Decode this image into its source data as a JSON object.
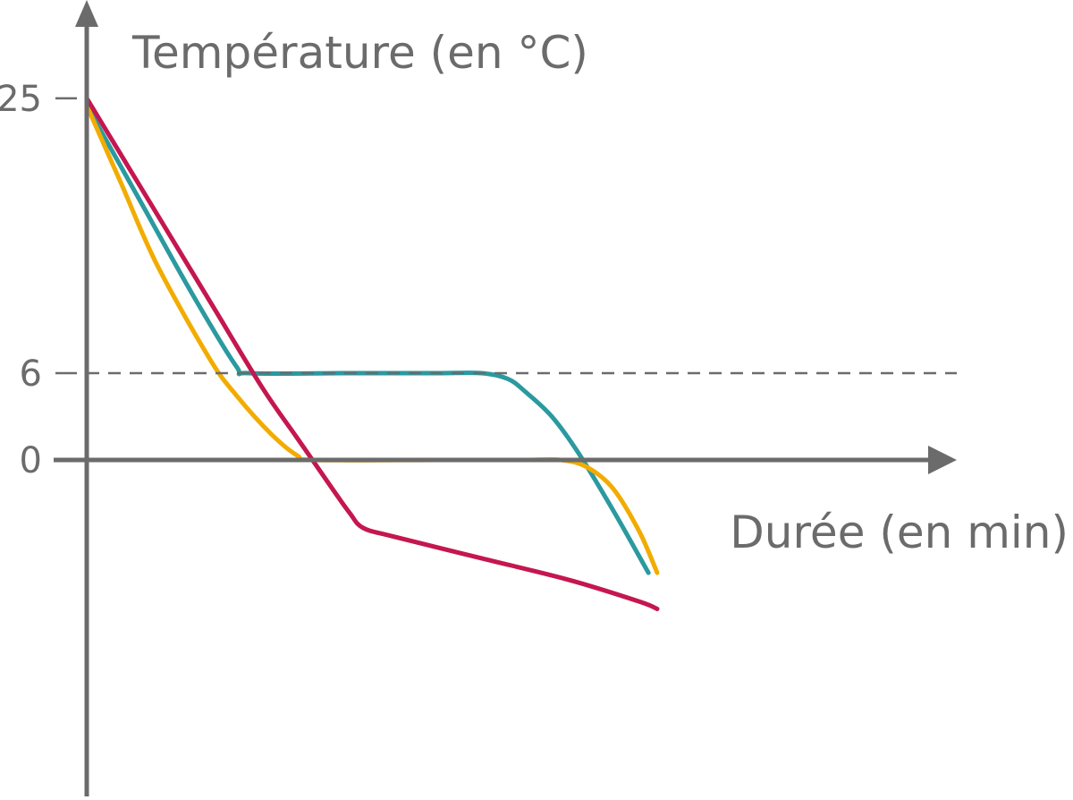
{
  "chart_data": {
    "type": "line",
    "ylabel": "Température (en °C)",
    "xlabel": "Durée (en min)",
    "y_ticks": [
      {
        "value": 25,
        "label": "25"
      },
      {
        "value": 6,
        "label": "6"
      },
      {
        "value": 0,
        "label": "0"
      }
    ],
    "ylim": [
      -24,
      28
    ],
    "reference_lines": [
      {
        "axis": "y",
        "value": 6,
        "style": "dashed"
      }
    ],
    "grid": false,
    "x_units": "relative (0 to 100, no ticks shown)",
    "xlim": [
      0,
      100
    ],
    "series": [
      {
        "color": "#2a9aa0",
        "points": [
          [
            0,
            24.5
          ],
          [
            6,
            18
          ],
          [
            12,
            11.5
          ],
          [
            17,
            6.5
          ],
          [
            18.5,
            6.0
          ],
          [
            30,
            6.0
          ],
          [
            40,
            6.0
          ],
          [
            45,
            6.0
          ],
          [
            48,
            5.6
          ],
          [
            50,
            4.7
          ],
          [
            53,
            3.0
          ],
          [
            56,
            0.5
          ],
          [
            60,
            -3.5
          ],
          [
            64,
            -7.8
          ]
        ]
      },
      {
        "color": "#f2ac00",
        "points": [
          [
            0,
            24.5
          ],
          [
            4,
            19
          ],
          [
            8,
            13.5
          ],
          [
            14,
            7.0
          ],
          [
            17,
            4.5
          ],
          [
            21,
            1.8
          ],
          [
            24,
            0.3
          ],
          [
            26,
            0.0
          ],
          [
            40,
            0.0
          ],
          [
            50,
            0.0
          ],
          [
            54,
            0.0
          ],
          [
            57,
            -0.5
          ],
          [
            60,
            -2.0
          ],
          [
            63,
            -5.0
          ],
          [
            65,
            -7.8
          ]
        ]
      },
      {
        "color": "#c4174f",
        "points": [
          [
            0,
            25.0
          ],
          [
            7,
            18
          ],
          [
            14,
            11
          ],
          [
            20,
            5
          ],
          [
            24,
            1.5
          ],
          [
            28,
            -2.0
          ],
          [
            30,
            -3.7
          ],
          [
            31.5,
            -4.7
          ],
          [
            35,
            -5.3
          ],
          [
            45,
            -6.8
          ],
          [
            55,
            -8.3
          ],
          [
            63,
            -9.8
          ],
          [
            65,
            -10.3
          ]
        ]
      }
    ]
  }
}
